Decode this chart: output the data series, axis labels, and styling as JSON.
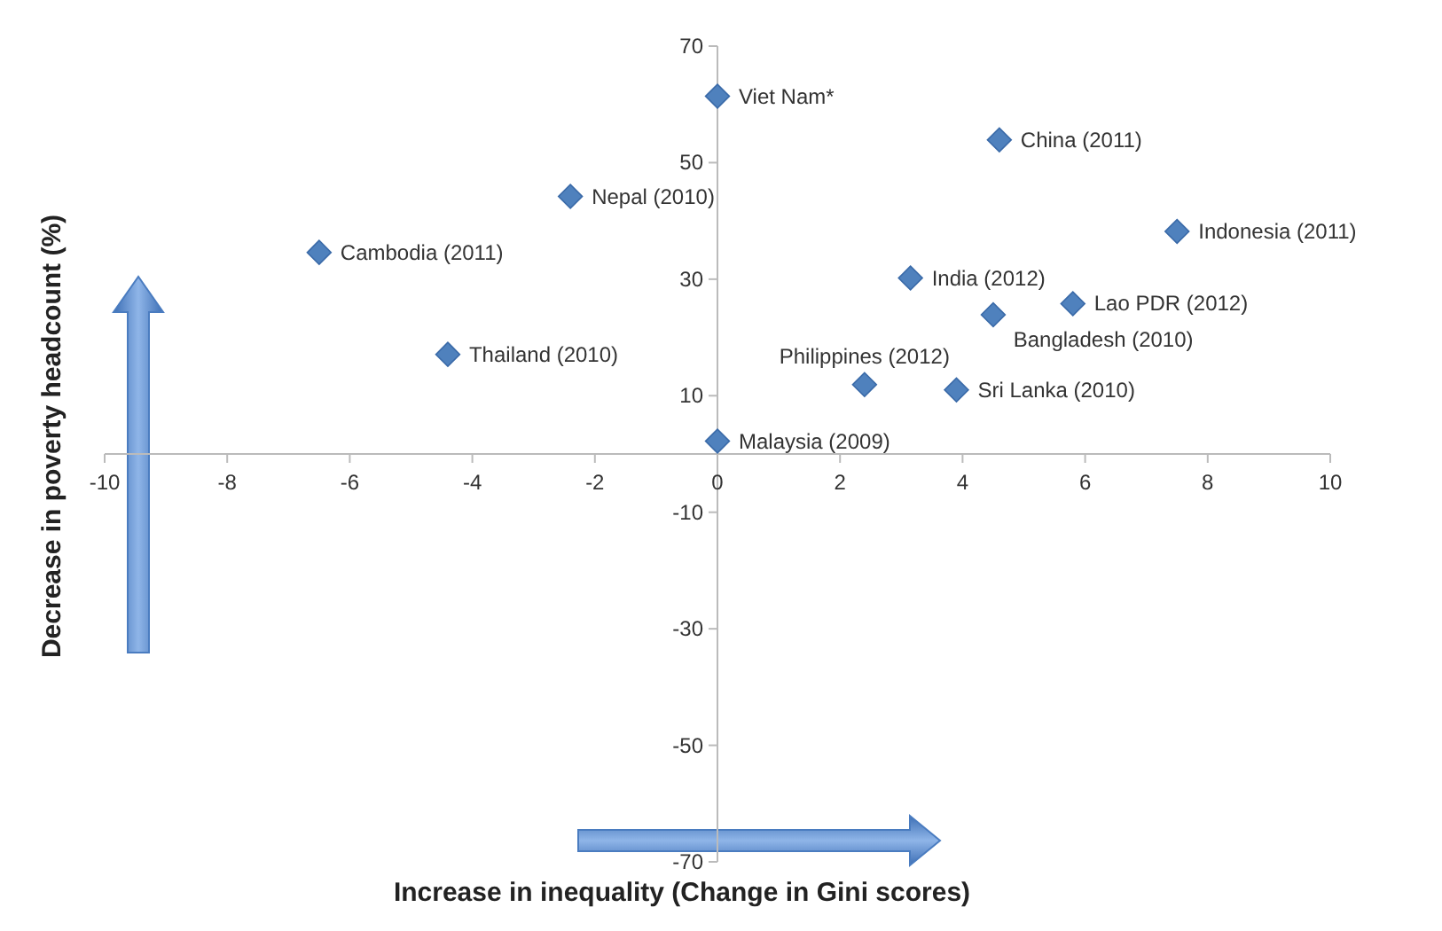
{
  "chart_data": {
    "type": "scatter",
    "xlabel": "Increase in inequality (Change in Gini scores)",
    "ylabel": "Decrease in poverty headcount (%)",
    "x": [
      0,
      4.6,
      -2.4,
      7.5,
      -6.5,
      3.15,
      5.8,
      4.5,
      -4.4,
      2.4,
      3.9,
      0
    ],
    "series": [
      {
        "color": "#4f81bd",
        "values": [
          61.4,
          53.9,
          44.2,
          38.2,
          34.6,
          30.2,
          25.8,
          23.9,
          17.1,
          11.9,
          11.0,
          2.2
        ]
      }
    ],
    "annotations": [
      {
        "text": "Viet Nam*",
        "x": 0,
        "y": 61.4
      },
      {
        "text": "China (2011)",
        "x": 4.6,
        "y": 53.9
      },
      {
        "text": "Nepal (2010)",
        "x": -2.4,
        "y": 44.2
      },
      {
        "text": "Indonesia (2011)",
        "x": 7.5,
        "y": 38.2
      },
      {
        "text": "Cambodia (2011)",
        "x": -6.5,
        "y": 34.6
      },
      {
        "text": "India (2012)",
        "x": 3.15,
        "y": 30.2
      },
      {
        "text": "Lao PDR (2012)",
        "x": 5.8,
        "y": 25.8
      },
      {
        "text": "Bangladesh (2010)",
        "x": 4.5,
        "y": 23.9
      },
      {
        "text": "Thailand (2010)",
        "x": -4.4,
        "y": 17.1
      },
      {
        "text": "Philippines (2012)",
        "x": 2.4,
        "y": 11.9
      },
      {
        "text": "Sri Lanka (2010)",
        "x": 3.9,
        "y": 11.0
      },
      {
        "text": "Malaysia (2009)",
        "x": 0,
        "y": 2.2
      }
    ],
    "xlim": [
      -10,
      10
    ],
    "xticks": [
      -10,
      -8,
      -6,
      -4,
      -2,
      0,
      2,
      4,
      6,
      8,
      10
    ],
    "ylim": [
      -70,
      70
    ],
    "yticks": [
      -70,
      -50,
      -30,
      -10,
      10,
      30,
      50,
      70
    ],
    "marker": "diamond",
    "grid": false
  }
}
